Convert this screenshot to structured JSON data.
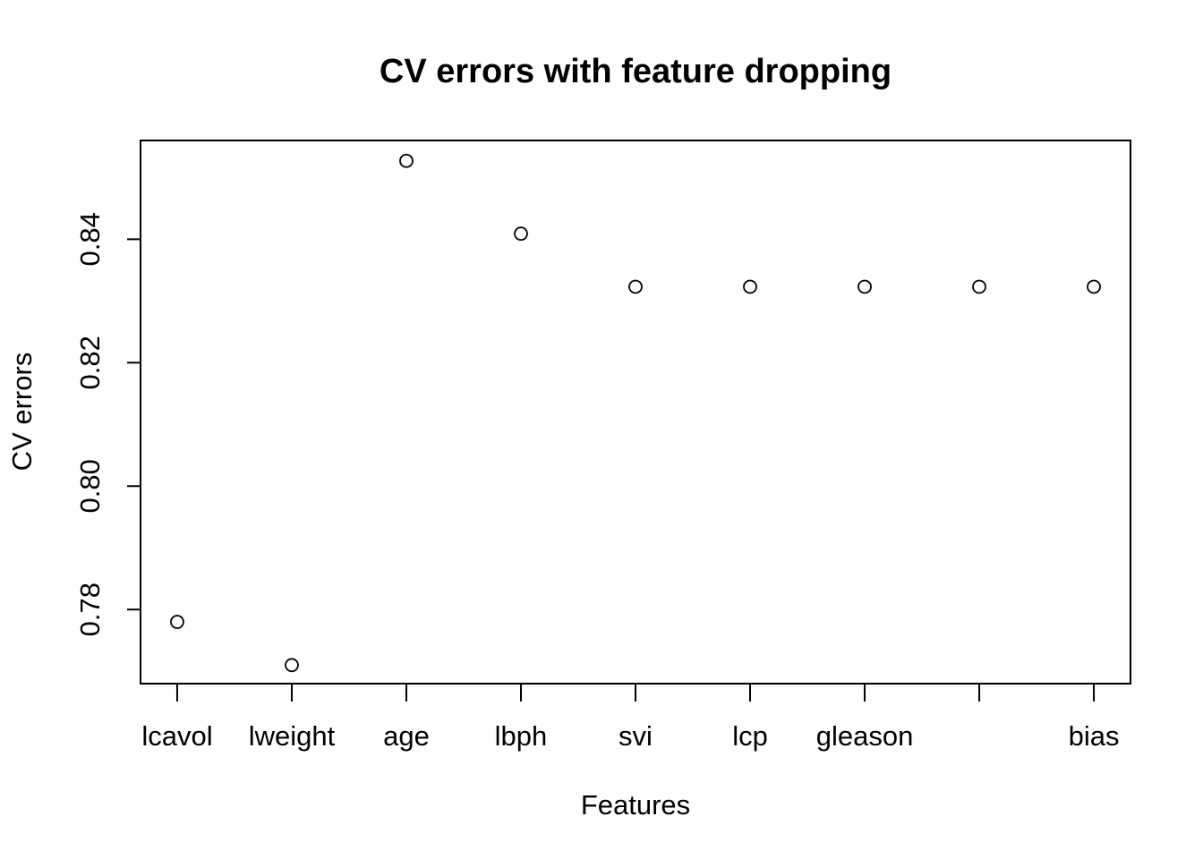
{
  "chart_data": {
    "type": "scatter",
    "title": "CV errors with feature dropping",
    "xlabel": "Features",
    "ylabel": "CV errors",
    "categories": [
      "lcavol",
      "lweight",
      "age",
      "lbph",
      "svi",
      "lcp",
      "gleason",
      "",
      "bias"
    ],
    "values": [
      0.778,
      0.771,
      0.8527,
      0.8409,
      0.8323,
      0.8323,
      0.8323,
      0.8323,
      0.8323
    ],
    "y_ticks": [
      0.78,
      0.8,
      0.82,
      0.84
    ],
    "y_tick_labels": [
      "0.78",
      "0.80",
      "0.82",
      "0.84"
    ],
    "ylim": [
      0.768,
      0.856
    ],
    "xlim": [
      0.68,
      9.32
    ],
    "marker": "open-circle",
    "grid": false,
    "legend": "none"
  }
}
